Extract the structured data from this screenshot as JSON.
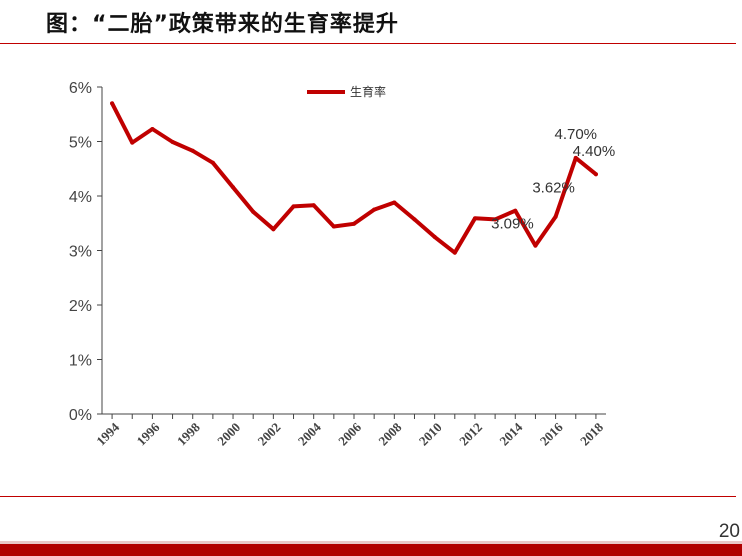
{
  "slide": {
    "title": "图：“二胎”政策带来的生育率提升",
    "page_number": "20"
  },
  "colors": {
    "accent": "#c00000",
    "line": "#c00000",
    "axis": "#444444"
  },
  "chart_data": {
    "type": "line",
    "title": "",
    "xlabel": "",
    "ylabel": "",
    "x": [
      1994,
      1995,
      1996,
      1997,
      1998,
      1999,
      2000,
      2001,
      2002,
      2003,
      2004,
      2005,
      2006,
      2007,
      2008,
      2009,
      2010,
      2011,
      2012,
      2013,
      2014,
      2015,
      2016,
      2017,
      2018
    ],
    "x_tick_labels": [
      "1994",
      "1996",
      "1998",
      "2000",
      "2002",
      "2004",
      "2006",
      "2008",
      "2010",
      "2012",
      "2014",
      "2016",
      "2018"
    ],
    "y_tick_labels": [
      "0%",
      "1%",
      "2%",
      "3%",
      "4%",
      "5%",
      "6%"
    ],
    "y_ticks": [
      0,
      1,
      2,
      3,
      4,
      5,
      6
    ],
    "ylim": [
      0,
      6
    ],
    "grid": false,
    "legend_position": "top-center",
    "series": [
      {
        "name": "生育率",
        "values": [
          5.7,
          4.98,
          5.23,
          4.99,
          4.83,
          4.61,
          4.16,
          3.71,
          3.39,
          3.81,
          3.83,
          3.44,
          3.49,
          3.75,
          3.88,
          3.57,
          3.25,
          2.96,
          3.59,
          3.57,
          3.73,
          3.09,
          3.62,
          4.7,
          4.4
        ]
      }
    ],
    "annotations": [
      {
        "x": 2015,
        "value": 3.09,
        "text": "3.09%"
      },
      {
        "x": 2016,
        "value": 3.62,
        "text": "3.62%"
      },
      {
        "x": 2017,
        "value": 4.7,
        "text": "4.70%"
      },
      {
        "x": 2018,
        "value": 4.4,
        "text": "4.40%"
      }
    ]
  }
}
